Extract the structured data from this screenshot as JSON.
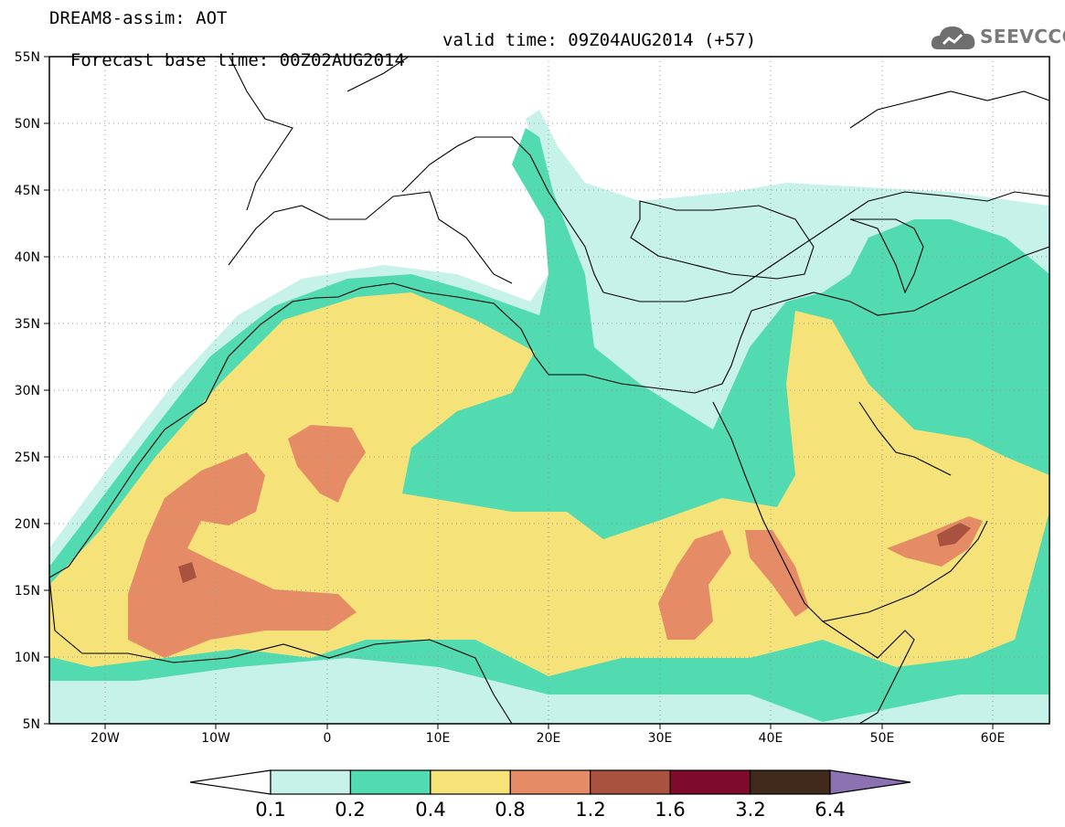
{
  "header": {
    "title": "DREAM8-assim: AOT",
    "base_time": "Forecast base time: 00Z02AUG2014",
    "valid_time": "valid time: 09Z04AUG2014 (+57)"
  },
  "logo": {
    "text": "SEEVCCC",
    "icon": "cloud-logo-icon"
  },
  "map": {
    "lat_labels": [
      "55N",
      "50N",
      "45N",
      "40N",
      "35N",
      "30N",
      "25N",
      "20N",
      "15N",
      "10N",
      "5N"
    ],
    "lon_labels": [
      "20W",
      "10W",
      "0",
      "10E",
      "20E",
      "30E",
      "40E",
      "50E",
      "60E"
    ],
    "lat_range": [
      5,
      55
    ],
    "lon_range": [
      -25,
      65
    ],
    "grid": "dotted"
  },
  "colorbar": {
    "labels": [
      "0.1",
      "0.2",
      "0.4",
      "0.8",
      "1.2",
      "1.6",
      "3.2",
      "6.4"
    ],
    "colors": [
      "#c6f2ea",
      "#52dbb0",
      "#f5e278",
      "#e58c66",
      "#a9523f",
      "#7e0a2c",
      "#3f2a1b",
      "#8c72b0"
    ]
  }
}
